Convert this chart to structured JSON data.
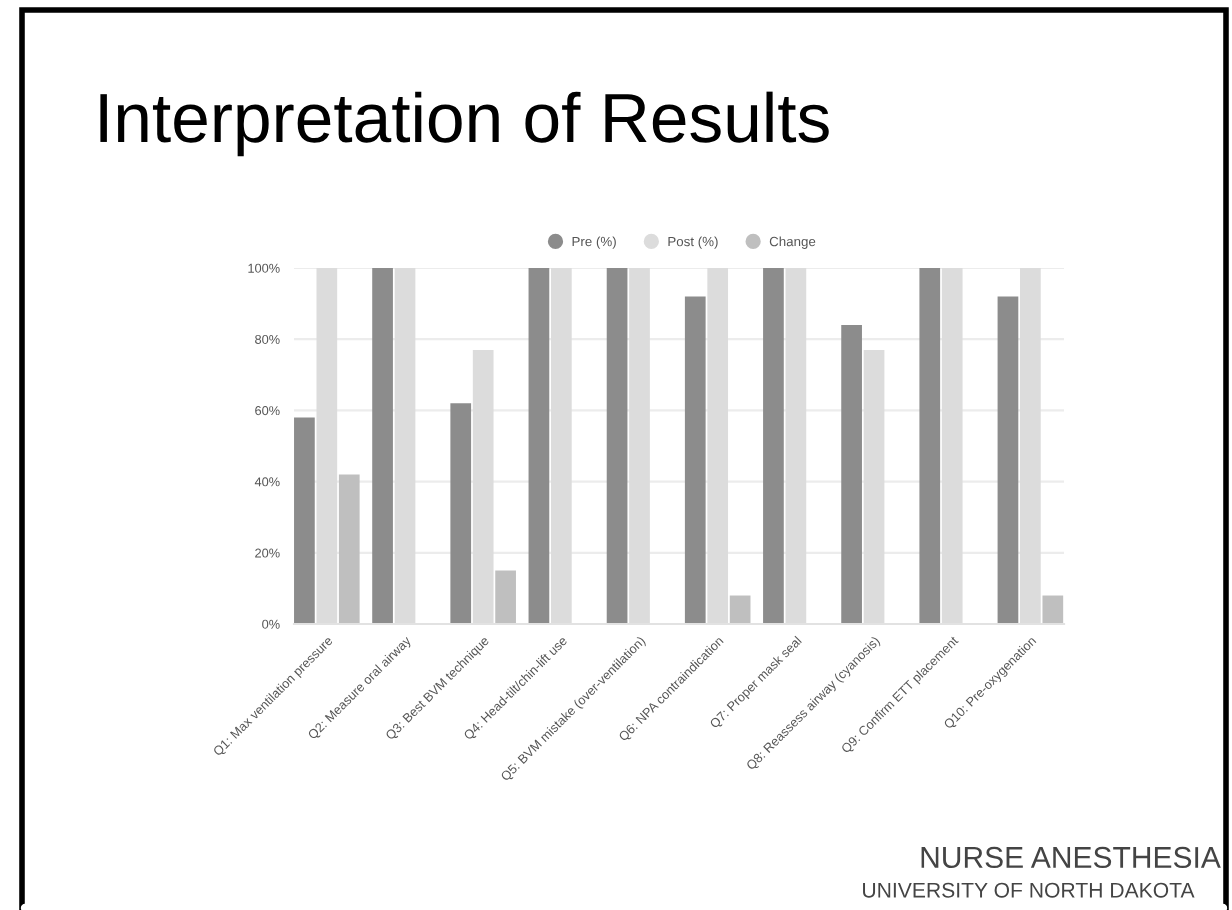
{
  "chart_data": {
    "type": "bar",
    "title": "Interpretation of Results",
    "categories": [
      "Q1: Max ventilation pressure",
      "Q2: Measure oral airway",
      "Q3: Best BVM technique",
      "Q4: Head-tilt/chin-lift use",
      "Q5: BVM mistake (over-ventilation)",
      "Q6: NPA contraindication",
      "Q7: Proper mask seal",
      "Q8: Reassess airway (cyanosis)",
      "Q9: Confirm ETT placement",
      "Q10: Pre-oxygenation"
    ],
    "series": [
      {
        "name": "Pre (%)",
        "color": "#8c8c8c",
        "values": [
          58,
          100,
          62,
          100,
          100,
          92,
          100,
          84,
          100,
          92
        ]
      },
      {
        "name": "Post (%)",
        "color": "#dcdcdc",
        "values": [
          100,
          100,
          77,
          100,
          100,
          100,
          100,
          77,
          100,
          100
        ]
      },
      {
        "name": "Change",
        "color": "#bfbfbf",
        "values": [
          42,
          0,
          15,
          0,
          0,
          8,
          0,
          null,
          0,
          8
        ]
      }
    ],
    "ylim": [
      0,
      100
    ],
    "yticks": [
      {
        "value": 0,
        "label": "0%"
      },
      {
        "value": 20,
        "label": "20%"
      },
      {
        "value": 40,
        "label": "40%"
      },
      {
        "value": 60,
        "label": "60%"
      },
      {
        "value": 80,
        "label": "80%"
      },
      {
        "value": 100,
        "label": "100%"
      }
    ],
    "grid": "y",
    "legend": "top",
    "annotations": [
      "NURSE ANESTHESIA",
      "UNIVERSITY OF NORTH DAKOTA"
    ]
  }
}
